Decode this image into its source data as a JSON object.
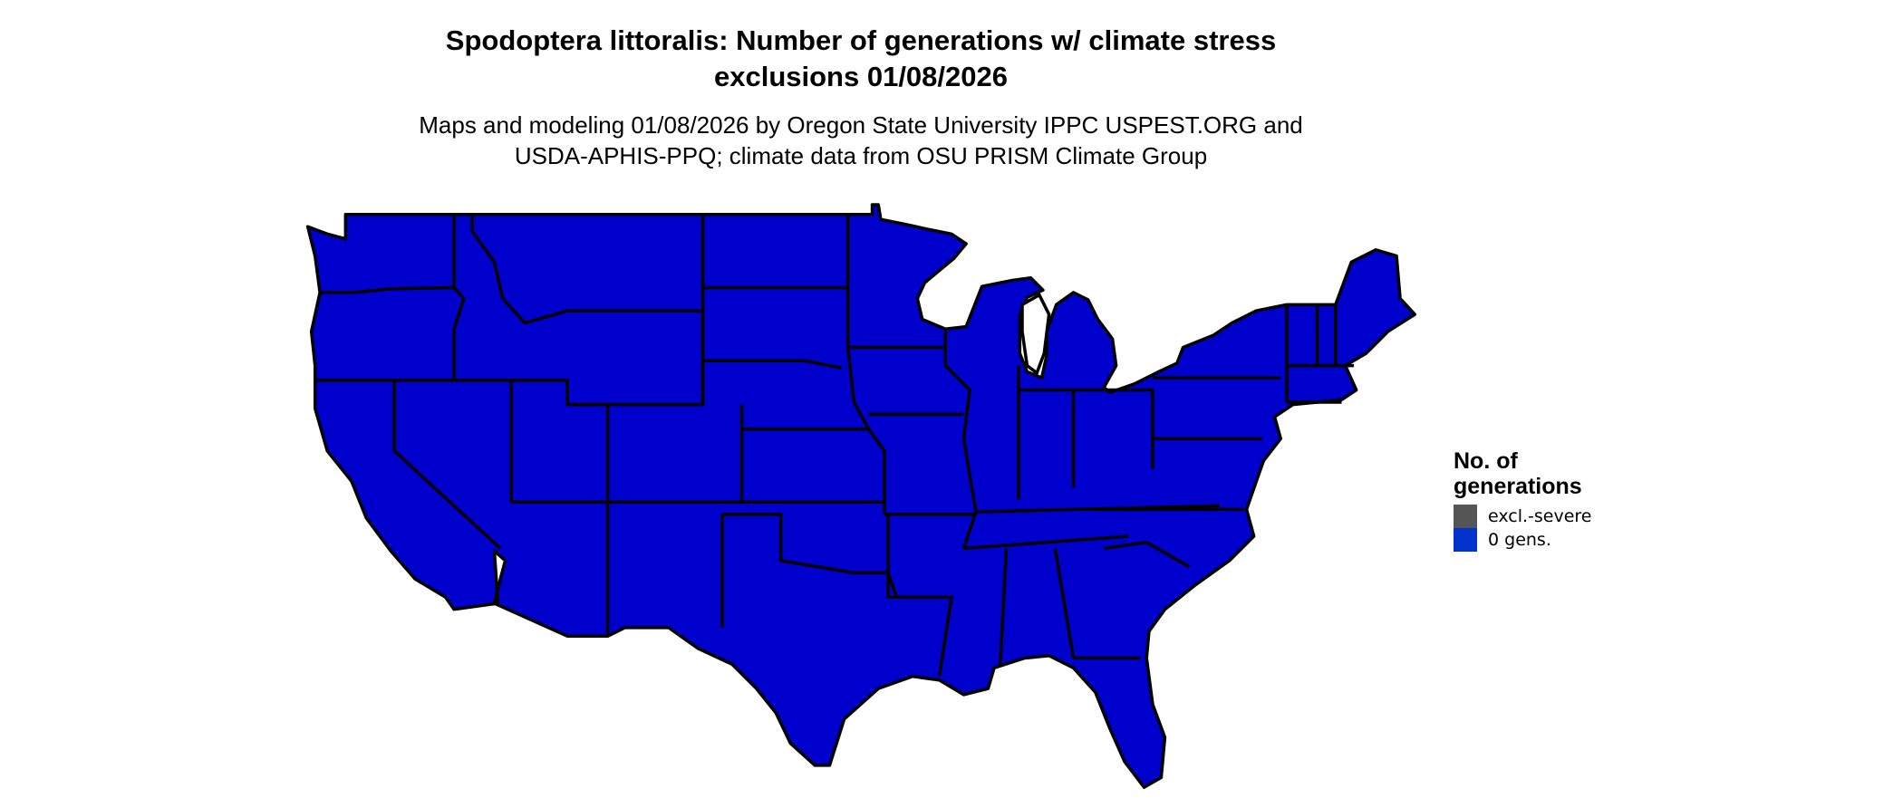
{
  "title_line1": "Spodoptera littoralis: Number of generations w/ climate stress",
  "title_line2": "exclusions 01/08/2026",
  "subtitle_line1": "Maps and modeling 01/08/2026 by Oregon State University IPPC USPEST.ORG and",
  "subtitle_line2": "USDA-APHIS-PPQ; climate data from OSU PRISM Climate Group",
  "map": {
    "region": "Contiguous United States",
    "fill_color": "#0000cc",
    "border_color": "#000000",
    "value_shown": "0 gens."
  },
  "legend": {
    "title_line1": "No. of",
    "title_line2": "generations",
    "items": [
      {
        "label": "excl.-severe",
        "color": "#555555"
      },
      {
        "label": "0 gens.",
        "color": "#0033cc"
      }
    ]
  }
}
